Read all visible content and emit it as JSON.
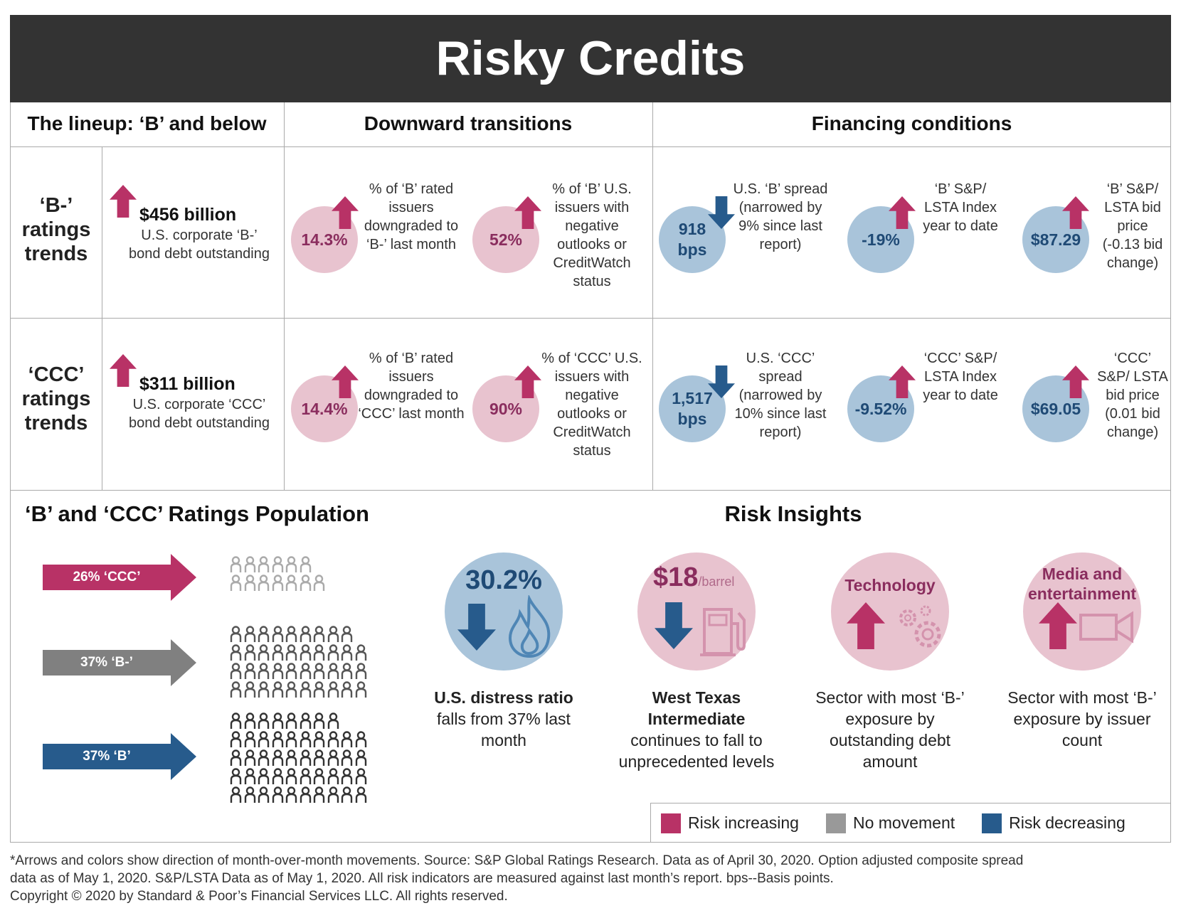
{
  "title": "Risky Credits",
  "headers": {
    "lineup": "The lineup: ‘B’ and below",
    "downward": "Downward transitions",
    "financing": "Financing conditions"
  },
  "rows": [
    {
      "label": "‘B-’ ratings trends",
      "amount": "$456 billion",
      "amount_desc": "U.S. corporate ‘B-’ bond debt outstanding",
      "down1": {
        "value": "14.3%",
        "desc": "% of ‘B’ rated issuers downgraded to ‘B-’ last month",
        "direction": "up"
      },
      "down2": {
        "value": "52%",
        "desc": "% of ‘B’ U.S. issuers with negative outlooks or CreditWatch status",
        "direction": "up"
      },
      "fin1": {
        "value": "918 bps",
        "desc": "U.S. ‘B’ spread (narrowed by 9% since last report)",
        "direction": "down"
      },
      "fin2": {
        "value": "-19%",
        "desc": "‘B’ S&P/ LSTA Index year to date",
        "direction": "up"
      },
      "fin3": {
        "value": "$87.29",
        "desc": "‘B’ S&P/ LSTA bid price (-0.13 bid change)",
        "direction": "up"
      }
    },
    {
      "label": "‘CCC’ ratings trends",
      "amount": "$311 billion",
      "amount_desc": "U.S. corporate ‘CCC’ bond debt outstanding",
      "down1": {
        "value": "14.4%",
        "desc": "% of ‘B’ rated issuers downgraded to ‘CCC’ last month",
        "direction": "up"
      },
      "down2": {
        "value": "90%",
        "desc": "% of ‘CCC’ U.S. issuers with negative outlooks or CreditWatch status",
        "direction": "up"
      },
      "fin1": {
        "value": "1,517 bps",
        "desc": "U.S. ‘CCC’ spread (narrowed by 10% since last report)",
        "direction": "down"
      },
      "fin2": {
        "value": "-9.52%",
        "desc": "‘CCC’ S&P/ LSTA Index year to date",
        "direction": "up"
      },
      "fin3": {
        "value": "$69.05",
        "desc": "‘CCC’ S&P/ LSTA bid price (0.01 bid change)",
        "direction": "up"
      }
    }
  ],
  "population": {
    "title": "‘B’ and ‘CCC’ Ratings Population",
    "groups": [
      {
        "label": "26% ‘CCC’",
        "color": "#b83266",
        "people_color": "#aaaaaa",
        "rows": [
          6,
          7
        ]
      },
      {
        "label": "37% ‘B-’",
        "color": "#808080",
        "people_color": "#555555",
        "rows": [
          9,
          10,
          10,
          10
        ]
      },
      {
        "label": "37% ‘B’",
        "color": "#275b8c",
        "people_color": "#333333",
        "rows": [
          8,
          10,
          10,
          10,
          10
        ]
      }
    ]
  },
  "insights": {
    "title": "Risk Insights",
    "items": [
      {
        "value": "30.2%",
        "icon": "flame-icon",
        "direction": "down",
        "bold": "U.S. distress ratio",
        "text": "falls from 37% last month"
      },
      {
        "value": "$18",
        "unit": "/barrel",
        "icon": "fuel-pump-icon",
        "direction": "down",
        "bold": "West Texas Intermediate",
        "text": "continues to fall to unprecedented levels"
      },
      {
        "value": "Technology",
        "icon": "gears-icon",
        "direction": "up",
        "bold": "",
        "text": "Sector with most ‘B-’ exposure by outstanding debt amount"
      },
      {
        "value": "Media and entertainment",
        "icon": "video-camera-icon",
        "direction": "up",
        "bold": "",
        "text": "Sector with most ‘B-’ exposure by issuer count"
      }
    ]
  },
  "legend": [
    {
      "label": "Risk increasing",
      "color": "#b83266"
    },
    {
      "label": "No movement",
      "color": "#999999"
    },
    {
      "label": "Risk decreasing",
      "color": "#275b8c"
    }
  ],
  "footnote": [
    "*Arrows and colors show direction of month-over-month movements. Source: S&P Global Ratings Research. Data as of April 30, 2020. Option adjusted composite spread",
    "data as of May 1, 2020. S&P/LSTA Data as of May 1, 2020. All risk indicators are measured against last month’s report. bps--Basis points.",
    "Copyright © 2020 by Standard & Poor’s Financial Services LLC. All rights reserved."
  ],
  "colors": {
    "increase": "#b83266",
    "decrease": "#275b8c",
    "pink_circle": "#e8c3cf",
    "blue_circle": "#a9c4da"
  }
}
